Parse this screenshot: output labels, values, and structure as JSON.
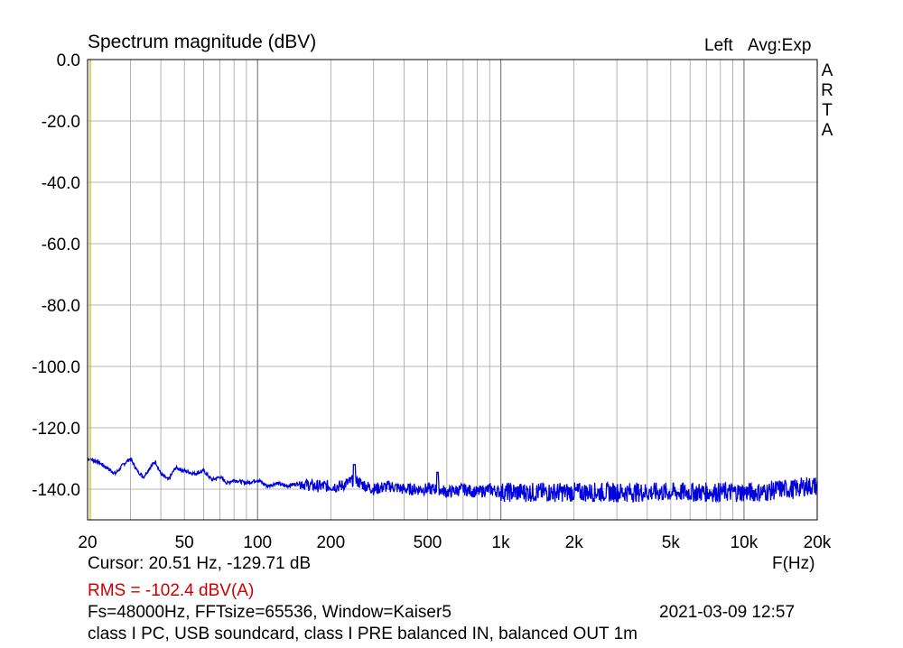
{
  "header": {
    "title": "Spectrum magnitude (dBV)",
    "channel": "Left",
    "averaging": "Avg:Exp",
    "brand_letters": [
      "A",
      "R",
      "T",
      "A"
    ]
  },
  "chart_data": {
    "type": "line",
    "title": "Spectrum magnitude (dBV)",
    "xlabel": "F(Hz)",
    "ylabel": "",
    "x_scale": "log",
    "xlim": [
      20,
      20000
    ],
    "ylim": [
      -150,
      0
    ],
    "x_ticks": [
      {
        "value": 20,
        "label": "20"
      },
      {
        "value": 50,
        "label": "50"
      },
      {
        "value": 100,
        "label": "100"
      },
      {
        "value": 200,
        "label": "200"
      },
      {
        "value": 500,
        "label": "500"
      },
      {
        "value": 1000,
        "label": "1k"
      },
      {
        "value": 2000,
        "label": "2k"
      },
      {
        "value": 5000,
        "label": "5k"
      },
      {
        "value": 10000,
        "label": "10k"
      },
      {
        "value": 20000,
        "label": "20k"
      }
    ],
    "y_ticks": [
      {
        "value": 0,
        "label": "0.0"
      },
      {
        "value": -20,
        "label": "-20.0"
      },
      {
        "value": -40,
        "label": "-40.0"
      },
      {
        "value": -60,
        "label": "-60.0"
      },
      {
        "value": -80,
        "label": "-80.0"
      },
      {
        "value": -100,
        "label": "-100.0"
      },
      {
        "value": -120,
        "label": "-120.0"
      },
      {
        "value": -140,
        "label": "-140.0"
      }
    ],
    "grid": true,
    "cursor_x": 20.51,
    "colors": {
      "series": "#0000dd",
      "cursor": "#b8b800",
      "grid": "#a0a0a0",
      "rms": "#cc0000"
    },
    "series": [
      {
        "x": [
          20,
          22,
          24,
          26,
          28,
          30,
          32,
          34,
          36,
          38,
          40,
          43,
          46,
          50,
          55,
          60,
          65,
          70,
          75,
          80,
          90,
          100,
          110,
          120,
          130,
          150,
          170,
          200,
          220,
          250,
          280,
          300,
          350,
          400,
          450,
          500,
          560,
          600,
          700,
          800,
          900,
          1000,
          1200,
          1500,
          2000,
          2500,
          3000,
          4000,
          5000,
          6000,
          7000,
          8000,
          10000,
          12000,
          14000,
          16000,
          18000,
          20000
        ],
        "values": [
          -130,
          -131,
          -133,
          -135,
          -132,
          -130,
          -134,
          -136,
          -133,
          -131,
          -135,
          -137,
          -133,
          -134,
          -135,
          -134,
          -137,
          -136,
          -138,
          -137,
          -138,
          -137,
          -139,
          -138,
          -139,
          -138,
          -139,
          -139,
          -139,
          -137,
          -139,
          -140,
          -139,
          -140,
          -140,
          -140,
          -140,
          -141,
          -140,
          -141,
          -140,
          -141,
          -141,
          -141,
          -141,
          -141,
          -141,
          -141,
          -141,
          -141,
          -141,
          -141,
          -141,
          -141,
          -140,
          -140,
          -139,
          -139
        ]
      }
    ]
  },
  "footer": {
    "cursor_readout": "Cursor: 20.51 Hz, -129.71 dB",
    "rms": "RMS = -102.4 dBV(A)",
    "settings": "Fs=48000Hz, FFTsize=65536, Window=Kaiser5",
    "timestamp": "2021-03-09   12:57",
    "description": "class I PC, USB soundcard, class I PRE balanced IN, balanced OUT 1m"
  }
}
